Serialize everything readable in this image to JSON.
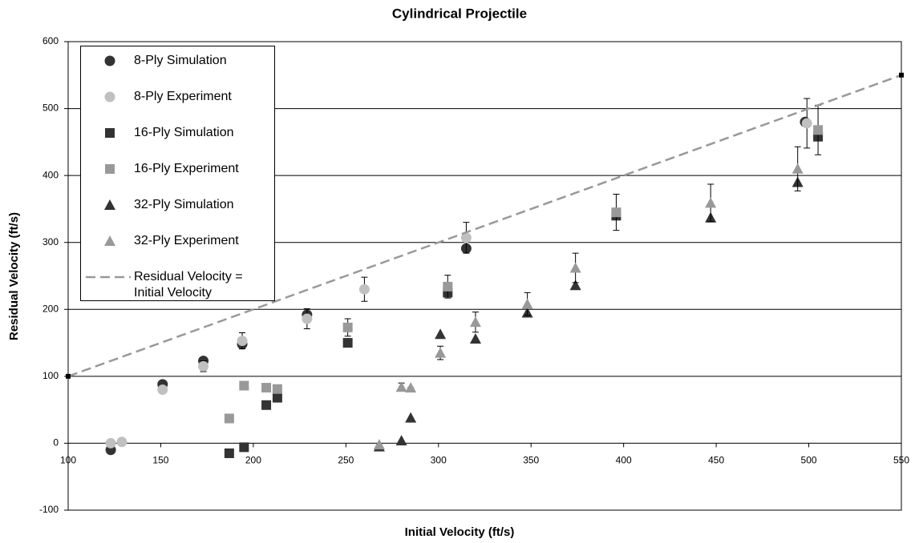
{
  "chart_data": {
    "type": "scatter",
    "title": "Cylindrical Projectile",
    "x_label": "Initial Velocity (ft/s)",
    "y_label": "Residual Velocity (ft/s)",
    "xlim": [
      100,
      550
    ],
    "xticks": [
      100,
      150,
      200,
      250,
      300,
      350,
      400,
      450,
      500,
      550
    ],
    "ylim": [
      -100,
      600
    ],
    "yticks": [
      -100,
      0,
      100,
      200,
      300,
      400,
      500,
      600
    ],
    "grid": true,
    "series": [
      {
        "name": "8-Ply Simulation",
        "color": "#333333",
        "marker": "circle",
        "x": [
          123,
          151,
          173,
          194,
          229,
          315,
          498
        ],
        "values": [
          -10,
          88,
          123,
          148,
          192,
          291,
          480
        ]
      },
      {
        "name": "8-Ply Experiment",
        "color": "#c0c0c0",
        "marker": "circle",
        "x": [
          123,
          129,
          151,
          173,
          194,
          229,
          260,
          315,
          499
        ],
        "values": [
          0,
          2,
          80,
          115,
          153,
          186,
          230,
          307,
          478
        ],
        "errors": [
          0,
          0,
          0,
          8,
          12,
          15,
          18,
          23,
          37
        ]
      },
      {
        "name": "16-Ply Simulation",
        "color": "#333333",
        "marker": "square",
        "x": [
          187,
          195,
          207,
          213,
          251,
          305,
          396,
          505
        ],
        "values": [
          -15,
          -6,
          57,
          68,
          150,
          225,
          340,
          458
        ]
      },
      {
        "name": "16-Ply Experiment",
        "color": "#999999",
        "marker": "square",
        "x": [
          187,
          195,
          207,
          213,
          251,
          305,
          396,
          505
        ],
        "values": [
          37,
          86,
          83,
          81,
          173,
          234,
          345,
          468
        ],
        "errors": [
          0,
          0,
          0,
          0,
          13,
          17,
          27,
          37
        ]
      },
      {
        "name": "32-Ply Simulation",
        "color": "#333333",
        "marker": "triangle",
        "x": [
          268,
          280,
          285,
          301,
          320,
          348,
          374,
          447,
          494
        ],
        "values": [
          -5,
          4,
          38,
          163,
          156,
          195,
          236,
          337,
          390
        ]
      },
      {
        "name": "32-Ply Experiment",
        "color": "#999999",
        "marker": "triangle",
        "x": [
          268,
          280,
          285,
          301,
          320,
          348,
          374,
          447,
          494
        ],
        "values": [
          -2,
          84,
          83,
          135,
          181,
          208,
          262,
          359,
          410
        ],
        "errors": [
          0,
          6,
          0,
          10,
          15,
          17,
          22,
          28,
          33
        ]
      },
      {
        "name": "Residual Velocity = Initial Velocity",
        "color": "#999999",
        "marker": "line",
        "dashed": true,
        "x": [
          100,
          550
        ],
        "values": [
          100,
          550
        ]
      }
    ]
  }
}
